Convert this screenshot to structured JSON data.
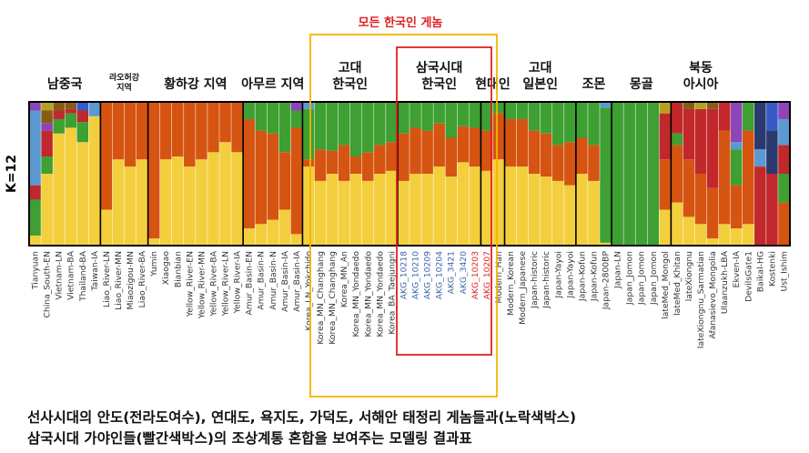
{
  "overlays": {
    "all_korean": "모든 한국인 게놈",
    "k_label": "K=12"
  },
  "caption": {
    "line1": "선사시대의 안도(전라도여수), 연대도, 욕지도, 가덕도, 서해안 태정리 게놈들과(노락색박스)",
    "line2": "삼국시대 가야인들(빨간색박스)의 조상계통 혼합을 보여주는 모델링 결과표"
  },
  "colors": {
    "yellow": "#f3cf3e",
    "orange": "#d65412",
    "green": "#3e9f32",
    "darkred": "#c0282b",
    "steelblue": "#5b99d1",
    "purple": "#8b45b7",
    "brown": "#8a5a15",
    "navy": "#2a3a6e",
    "blue": "#3659c6",
    "olive": "#b7a020",
    "box_yellow": "#f5b400",
    "box_red": "#e02020",
    "blue_label": "#3a63a8",
    "red_label": "#e02020"
  },
  "chart_data": {
    "type": "bar",
    "stacked": true,
    "normalized": true,
    "ylabel": "K=12",
    "ylim": [
      0,
      1
    ],
    "groups": [
      {
        "label": "남중국",
        "start": 0,
        "end": 6
      },
      {
        "label": "라오허강 지역",
        "start": 6,
        "end": 10
      },
      {
        "label": "황하강 지역",
        "start": 10,
        "end": 18
      },
      {
        "label": "아무르 지역",
        "start": 18,
        "end": 23
      },
      {
        "label": "고대 한국인",
        "start": 23,
        "end": 31
      },
      {
        "label": "삼국시대 한국인",
        "start": 31,
        "end": 38
      },
      {
        "label": "현대인",
        "start": 38,
        "end": 40
      },
      {
        "label": "고대 일본인",
        "start": 40,
        "end": 46
      },
      {
        "label": "조몬",
        "start": 46,
        "end": 49
      },
      {
        "label": "몽골",
        "start": 49,
        "end": 54
      },
      {
        "label": "북동 아시아",
        "start": 54,
        "end": 59
      }
    ],
    "components": [
      "yellow",
      "orange",
      "green",
      "darkred",
      "steelblue",
      "purple",
      "brown",
      "navy",
      "blue",
      "olive"
    ],
    "samples": [
      {
        "name": "Tianyuan",
        "color": "dark",
        "mix": {
          "yellow": 0.07,
          "green": 0.25,
          "steelblue": 0.52,
          "darkred": 0.1,
          "purple": 0.06
        }
      },
      {
        "name": "China_South-EN",
        "color": "dark",
        "mix": {
          "yellow": 0.5,
          "olive": 0.06,
          "green": 0.12,
          "darkred": 0.18,
          "purple": 0.05,
          "brown": 0.09
        }
      },
      {
        "name": "Vietnam-LN",
        "color": "dark",
        "mix": {
          "yellow": 0.78,
          "brown": 0.06,
          "green": 0.1,
          "darkred": 0.06
        }
      },
      {
        "name": "Vietnam-BA",
        "color": "dark",
        "mix": {
          "yellow": 0.82,
          "brown": 0.05,
          "green": 0.1,
          "darkred": 0.03
        }
      },
      {
        "name": "Thailand-BA",
        "color": "dark",
        "mix": {
          "yellow": 0.72,
          "green": 0.14,
          "darkred": 0.08,
          "blue": 0.06
        }
      },
      {
        "name": "Taiwan-IA",
        "color": "dark",
        "mix": {
          "yellow": 0.9,
          "steelblue": 0.1
        }
      },
      {
        "name": "Liao_River-LN",
        "color": "dark",
        "mix": {
          "yellow": 0.25,
          "orange": 0.75
        }
      },
      {
        "name": "Liao_River-MN",
        "color": "dark",
        "mix": {
          "yellow": 0.6,
          "orange": 0.4
        }
      },
      {
        "name": "Miaozigou-MN",
        "color": "dark",
        "mix": {
          "yellow": 0.55,
          "orange": 0.45
        }
      },
      {
        "name": "Liao_River-BA",
        "color": "dark",
        "mix": {
          "yellow": 0.6,
          "orange": 0.4
        }
      },
      {
        "name": "Yumin",
        "color": "dark",
        "mix": {
          "yellow": 0.05,
          "orange": 0.95
        }
      },
      {
        "name": "Xiaogao",
        "color": "dark",
        "mix": {
          "yellow": 0.6,
          "orange": 0.4
        }
      },
      {
        "name": "Bianbian",
        "color": "dark",
        "mix": {
          "yellow": 0.62,
          "orange": 0.38
        }
      },
      {
        "name": "Yellow_River-EN",
        "color": "dark",
        "mix": {
          "yellow": 0.55,
          "orange": 0.45
        }
      },
      {
        "name": "Yellow_River-MN",
        "color": "dark",
        "mix": {
          "yellow": 0.6,
          "orange": 0.4
        }
      },
      {
        "name": "Yellow_River-BA",
        "color": "dark",
        "mix": {
          "yellow": 0.65,
          "orange": 0.35
        }
      },
      {
        "name": "Yellow_River-LN",
        "color": "dark",
        "mix": {
          "yellow": 0.72,
          "orange": 0.28
        }
      },
      {
        "name": "Yellow_River-IA",
        "color": "dark",
        "mix": {
          "yellow": 0.65,
          "orange": 0.35
        }
      },
      {
        "name": "Amur_Basin-EN",
        "color": "dark",
        "mix": {
          "yellow": 0.12,
          "green": 0.12,
          "orange": 0.76
        }
      },
      {
        "name": "Amur_Basin-N",
        "color": "dark",
        "mix": {
          "yellow": 0.15,
          "green": 0.2,
          "orange": 0.65
        }
      },
      {
        "name": "Amur_Basin-N",
        "color": "dark",
        "mix": {
          "yellow": 0.18,
          "green": 0.22,
          "orange": 0.6
        }
      },
      {
        "name": "Amur_Basin-IA",
        "color": "dark",
        "mix": {
          "yellow": 0.25,
          "green": 0.35,
          "orange": 0.4
        }
      },
      {
        "name": "Amur_Basin-IA",
        "color": "dark",
        "mix": {
          "yellow": 0.08,
          "purple": 0.06,
          "green": 0.12,
          "orange": 0.74
        }
      },
      {
        "name": "Korea_LN_Yokchido",
        "color": "dark",
        "mix": {
          "yellow": 0.55,
          "green": 0.35,
          "orange": 0.05,
          "steelblue": 0.05
        }
      },
      {
        "name": "Korea_MN_Changhang",
        "color": "dark",
        "mix": {
          "yellow": 0.45,
          "green": 0.33,
          "orange": 0.22
        }
      },
      {
        "name": "Korea_MN_Changhang",
        "color": "dark",
        "mix": {
          "yellow": 0.5,
          "green": 0.34,
          "orange": 0.16
        }
      },
      {
        "name": "Korea_MN_An",
        "color": "dark",
        "mix": {
          "yellow": 0.45,
          "green": 0.3,
          "orange": 0.25
        }
      },
      {
        "name": "Korea_MN_Yondaedo",
        "color": "dark",
        "mix": {
          "yellow": 0.5,
          "green": 0.38,
          "orange": 0.12
        }
      },
      {
        "name": "Korea_MN_Yondaedo",
        "color": "dark",
        "mix": {
          "yellow": 0.45,
          "green": 0.35,
          "orange": 0.2
        }
      },
      {
        "name": "Korea_MN_Yondaedo",
        "color": "dark",
        "mix": {
          "yellow": 0.5,
          "green": 0.3,
          "orange": 0.2
        }
      },
      {
        "name": "Korea_BA_Taejungni",
        "color": "dark",
        "mix": {
          "yellow": 0.52,
          "green": 0.28,
          "orange": 0.2
        }
      },
      {
        "name": "AKG_10218",
        "color": "blue",
        "mix": {
          "yellow": 0.45,
          "green": 0.22,
          "orange": 0.33
        }
      },
      {
        "name": "AKG_10210",
        "color": "blue",
        "mix": {
          "yellow": 0.5,
          "green": 0.18,
          "orange": 0.32
        }
      },
      {
        "name": "AKG_10209",
        "color": "blue",
        "mix": {
          "yellow": 0.5,
          "green": 0.2,
          "orange": 0.3
        }
      },
      {
        "name": "AKG_10204",
        "color": "blue",
        "mix": {
          "yellow": 0.55,
          "green": 0.15,
          "orange": 0.3
        }
      },
      {
        "name": "AKG_3421",
        "color": "blue",
        "mix": {
          "yellow": 0.48,
          "green": 0.25,
          "orange": 0.27
        }
      },
      {
        "name": "AKG_3420",
        "color": "blue",
        "mix": {
          "yellow": 0.58,
          "green": 0.17,
          "orange": 0.25
        }
      },
      {
        "name": "AKG_10203",
        "color": "red",
        "mix": {
          "yellow": 0.55,
          "green": 0.18,
          "orange": 0.27
        }
      },
      {
        "name": "AKG_10207",
        "color": "red",
        "mix": {
          "yellow": 0.52,
          "green": 0.2,
          "orange": 0.28
        }
      },
      {
        "name": "Modern_Han",
        "color": "dark",
        "mix": {
          "yellow": 0.6,
          "green": 0.08,
          "orange": 0.32
        }
      },
      {
        "name": "Modern_Korean",
        "color": "dark",
        "mix": {
          "yellow": 0.55,
          "green": 0.12,
          "orange": 0.33
        }
      },
      {
        "name": "Modern_Japanese",
        "color": "dark",
        "mix": {
          "yellow": 0.55,
          "green": 0.12,
          "orange": 0.33
        }
      },
      {
        "name": "Japan-historic",
        "color": "dark",
        "mix": {
          "yellow": 0.5,
          "green": 0.2,
          "orange": 0.3
        }
      },
      {
        "name": "Japan-historic",
        "color": "dark",
        "mix": {
          "yellow": 0.48,
          "green": 0.22,
          "orange": 0.3
        }
      },
      {
        "name": "Japan-Yayoi",
        "color": "dark",
        "mix": {
          "yellow": 0.45,
          "green": 0.3,
          "orange": 0.25
        }
      },
      {
        "name": "Japan-Yayoi",
        "color": "dark",
        "mix": {
          "yellow": 0.42,
          "green": 0.28,
          "orange": 0.3
        }
      },
      {
        "name": "Japan-Kofun",
        "color": "dark",
        "mix": {
          "yellow": 0.5,
          "green": 0.25,
          "orange": 0.25
        }
      },
      {
        "name": "Japan-Kofun",
        "color": "dark",
        "mix": {
          "yellow": 0.45,
          "green": 0.3,
          "orange": 0.25
        }
      },
      {
        "name": "Japan-2800BP",
        "color": "dark",
        "mix": {
          "yellow": 0.02,
          "green": 0.94,
          "steelblue": 0.04
        }
      },
      {
        "name": "Japan-LN",
        "color": "dark",
        "mix": {
          "green": 1.0
        }
      },
      {
        "name": "Japan_Jomon",
        "color": "dark",
        "mix": {
          "green": 1.0
        }
      },
      {
        "name": "Japan_Jomon",
        "color": "dark",
        "mix": {
          "green": 1.0
        }
      },
      {
        "name": "Japan_Jomon",
        "color": "dark",
        "mix": {
          "green": 1.0
        }
      },
      {
        "name": "lateMed_Mongol",
        "color": "dark",
        "mix": {
          "yellow": 0.25,
          "olive": 0.08,
          "darkred": 0.32,
          "orange": 0.35
        }
      },
      {
        "name": "lateMed_Khitan",
        "color": "dark",
        "mix": {
          "yellow": 0.3,
          "green": 0.08,
          "darkred": 0.22,
          "orange": 0.4
        }
      },
      {
        "name": "lateXiongnu",
        "color": "dark",
        "mix": {
          "yellow": 0.2,
          "darkred": 0.35,
          "brown": 0.05,
          "orange": 0.4
        }
      },
      {
        "name": "lateXiongnu_Sarmatian",
        "color": "dark",
        "mix": {
          "yellow": 0.15,
          "darkred": 0.45,
          "olive": 0.05,
          "orange": 0.35
        }
      },
      {
        "name": "Afanasievo_Mongolia",
        "color": "dark",
        "mix": {
          "yellow": 0.05,
          "darkred": 0.55,
          "brown": 0.05,
          "orange": 0.35
        }
      },
      {
        "name": "Ulaanzukh-LBA",
        "color": "dark",
        "mix": {
          "yellow": 0.15,
          "darkred": 0.2,
          "orange": 0.65
        }
      },
      {
        "name": "Ekven-IA",
        "color": "dark",
        "mix": {
          "purple": 0.28,
          "green": 0.25,
          "steelblue": 0.05,
          "yellow": 0.12,
          "orange": 0.3
        }
      },
      {
        "name": "DevilsGate1",
        "color": "dark",
        "mix": {
          "orange": 0.65,
          "green": 0.2,
          "yellow": 0.15
        }
      },
      {
        "name": "Baikal-HG",
        "color": "dark",
        "mix": {
          "steelblue": 0.12,
          "darkred": 0.55,
          "navy": 0.33
        }
      },
      {
        "name": "Kostenki",
        "color": "dark",
        "mix": {
          "blue": 0.2,
          "darkred": 0.5,
          "navy": 0.3
        }
      },
      {
        "name": "Ust_Ishim",
        "color": "dark",
        "mix": {
          "purple": 0.12,
          "orange": 0.3,
          "green": 0.2,
          "darkred": 0.2,
          "steelblue": 0.18
        }
      }
    ]
  }
}
